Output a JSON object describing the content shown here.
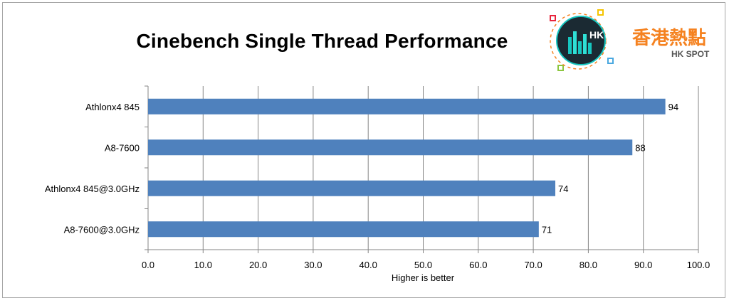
{
  "chart_data": {
    "type": "bar",
    "orientation": "horizontal",
    "title": "Cinebench Single Thread Performance",
    "xlabel": "Higher is better",
    "ylabel": "",
    "categories": [
      "Athlonx4 845",
      "A8-7600",
      "Athlonx4 845@3.0GHz",
      "A8-7600@3.0GHz"
    ],
    "values": [
      94,
      88,
      74,
      71
    ],
    "xlim": [
      0,
      100
    ],
    "xticks": [
      "0.0",
      "10.0",
      "20.0",
      "30.0",
      "40.0",
      "50.0",
      "60.0",
      "70.0",
      "80.0",
      "90.0",
      "100.0"
    ],
    "grid": true,
    "bar_color": "#4f81bd"
  },
  "logo": {
    "chinese": "香港熱點",
    "english": "HK SPOT",
    "badge": "HK",
    "accent": "#f58220"
  }
}
